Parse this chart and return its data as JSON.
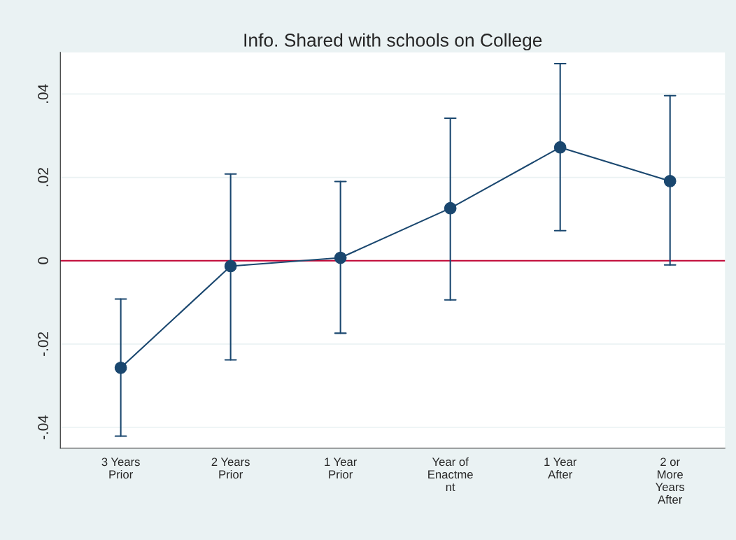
{
  "chart_data": {
    "type": "line",
    "title": "Info. Shared with schools on College",
    "categories": [
      "3 Years\nPrior",
      "2 Years\nPrior",
      "1 Year\nPrior",
      "Year of\nEnactme\nnt",
      "1 Year\nAfter",
      "2 or\nMore\nYears\nAfter"
    ],
    "series": [
      {
        "color": "#1a476f",
        "values": [
          -0.0257,
          -0.0013,
          0.0007,
          0.0126,
          0.0272,
          0.0191
        ],
        "errors": [
          [
            -0.0421,
            -0.0092
          ],
          [
            -0.0238,
            0.0208
          ],
          [
            -0.0174,
            0.019
          ],
          [
            -0.0094,
            0.0342
          ],
          [
            0.0072,
            0.0473
          ],
          [
            -0.001,
            0.0396
          ]
        ]
      }
    ],
    "ylim": [
      -0.045,
      0.05
    ],
    "yticks": [
      {
        "value": -0.04,
        "label": "-.04"
      },
      {
        "value": -0.02,
        "label": "-.02"
      },
      0,
      {
        "value": 0.02,
        "label": ".02"
      },
      {
        "value": 0.04,
        "label": ".04"
      }
    ],
    "ref_lines": [
      {
        "axis": "y",
        "value": 0,
        "color": "#c10534"
      }
    ],
    "grid": "y",
    "marker": "circle",
    "line_style": "solid"
  }
}
